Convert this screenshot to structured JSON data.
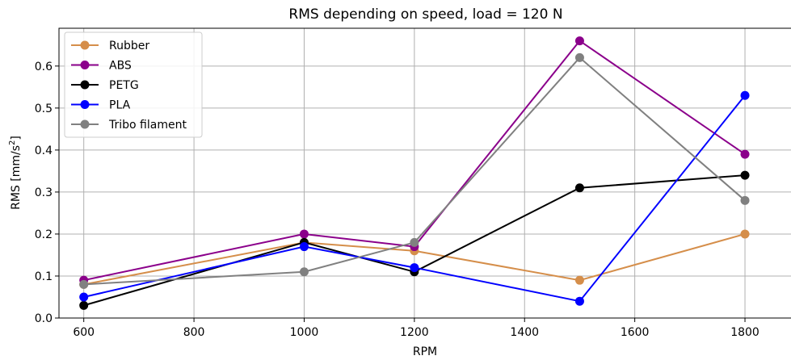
{
  "chart_data": {
    "type": "line",
    "title": "RMS depending on speed, load = 120 N",
    "xlabel": "RPM",
    "ylabel_prefix": "RMS [mm/s",
    "ylabel_sup": "2",
    "ylabel_suffix": "]",
    "xlim": [
      555,
      1885
    ],
    "ylim": [
      0.0,
      0.69
    ],
    "xticks": [
      600,
      800,
      1000,
      1200,
      1400,
      1600,
      1800
    ],
    "yticks": [
      "0.0",
      "0.1",
      "0.2",
      "0.3",
      "0.4",
      "0.5",
      "0.6"
    ],
    "grid": true,
    "legend_position": "top-left",
    "x": [
      600,
      1000,
      1200,
      1500,
      1800
    ],
    "series": [
      {
        "name": "Rubber",
        "color": "#d58e4a",
        "values": [
          0.08,
          0.18,
          0.16,
          0.09,
          0.2
        ]
      },
      {
        "name": "ABS",
        "color": "#8b008b",
        "values": [
          0.09,
          0.2,
          0.17,
          0.66,
          0.39
        ]
      },
      {
        "name": "PETG",
        "color": "#000000",
        "values": [
          0.03,
          0.18,
          0.11,
          0.31,
          0.34
        ]
      },
      {
        "name": "PLA",
        "color": "#0000ff",
        "values": [
          0.05,
          0.17,
          0.12,
          0.04,
          0.53
        ]
      },
      {
        "name": "Tribo filament",
        "color": "#808080",
        "values": [
          0.08,
          0.11,
          0.18,
          0.62,
          0.28
        ]
      }
    ]
  }
}
